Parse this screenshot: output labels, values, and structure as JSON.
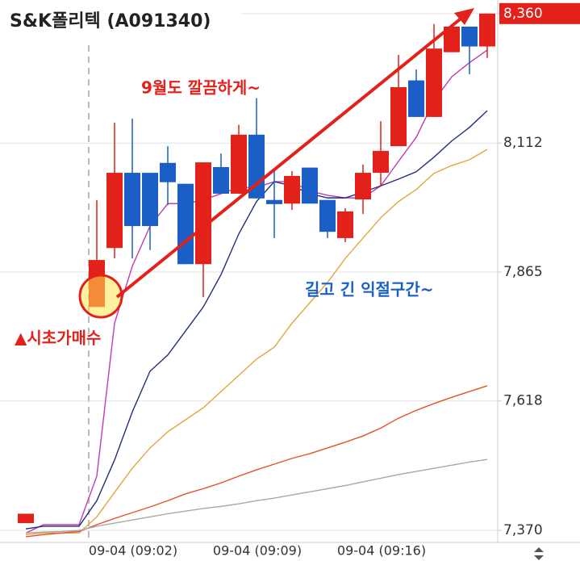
{
  "chart_data": {
    "type": "candlestick",
    "title": "S&K폴리텍 (A091340)",
    "categories": [
      null,
      null,
      null,
      null,
      null,
      null,
      "09-04 (09:02)",
      null,
      null,
      null,
      null,
      null,
      null,
      "09-04 (09:09)",
      null,
      null,
      null,
      null,
      null,
      null,
      "09-04 (09:16)",
      null,
      null,
      null,
      null,
      null,
      null
    ],
    "open": [
      7384,
      null,
      null,
      null,
      7798,
      7911,
      8055,
      8055,
      8074,
      8034,
      7880,
      8066,
      8015,
      8128,
      8003,
      7996,
      8065,
      8003,
      7930,
      8004,
      8055,
      8106,
      8232,
      8162,
      8286,
      8335,
      8297
    ],
    "high": [
      7402,
      null,
      null,
      null,
      8003,
      8151,
      8159,
      8055,
      8106,
      8034,
      8075,
      8092,
      8147,
      8198,
      8061,
      8058,
      8065,
      8003,
      7987,
      8071,
      8154,
      8281,
      8253,
      8340,
      8340,
      8335,
      8360
    ],
    "low": [
      7384,
      null,
      null,
      null,
      7798,
      7891,
      7891,
      7907,
      7993,
      7880,
      7817,
      8015,
      8015,
      8006,
      7930,
      7984,
      7996,
      7930,
      7922,
      7976,
      8030,
      8106,
      8162,
      8162,
      8286,
      8244,
      8275
    ],
    "close": [
      7402,
      null,
      null,
      null,
      7888,
      8055,
      7953,
      7953,
      8037,
      7880,
      8075,
      8015,
      8128,
      8006,
      7995,
      8049,
      7996,
      7942,
      7981,
      8055,
      8097,
      8219,
      8162,
      8293,
      8335,
      8297,
      8360
    ],
    "up_color": "#e3211b",
    "down_color": "#1b5ec6",
    "series": [
      {
        "color": "#c03ab8",
        "values": [
          7365,
          7381,
          7381,
          7381,
          7474,
          7767,
          7876,
          7953,
          7996,
          7996,
          8003,
          8015,
          8027,
          8027,
          8038,
          8038,
          8020,
          8012,
          8007,
          8007,
          8030,
          8077,
          8123,
          8193,
          8239,
          8266,
          8290
        ]
      },
      {
        "color": "#1f2f7a",
        "values": [
          7373,
          7378,
          7378,
          7378,
          7427,
          7505,
          7597,
          7675,
          7706,
          7752,
          7798,
          7860,
          7938,
          8000,
          8038,
          8030,
          8015,
          8007,
          8007,
          8018,
          8030,
          8043,
          8057,
          8085,
          8116,
          8142,
          8174
        ]
      },
      {
        "color": "#e0a83a",
        "values": [
          7362,
          7365,
          7365,
          7365,
          7396,
          7443,
          7489,
          7528,
          7559,
          7582,
          7605,
          7636,
          7667,
          7698,
          7721,
          7767,
          7806,
          7845,
          7891,
          7930,
          7969,
          8000,
          8023,
          8054,
          8069,
          8080,
          8100
        ]
      },
      {
        "color": "#e5502a",
        "values": [
          7358,
          7362,
          7365,
          7368,
          7381,
          7393,
          7404,
          7415,
          7427,
          7440,
          7450,
          7461,
          7474,
          7486,
          7497,
          7508,
          7517,
          7528,
          7539,
          7551,
          7566,
          7585,
          7600,
          7613,
          7625,
          7636,
          7647
        ]
      },
      {
        "color": "#a8a8a8",
        "values": [
          7365,
          7367,
          7368,
          7370,
          7378,
          7384,
          7390,
          7396,
          7402,
          7407,
          7412,
          7416,
          7421,
          7427,
          7432,
          7438,
          7444,
          7450,
          7456,
          7463,
          7470,
          7477,
          7483,
          7489,
          7495,
          7501,
          7506
        ]
      }
    ],
    "ylim": [
      7347,
      8386
    ],
    "yticks": [
      {
        "value": 7370,
        "label": "7,370"
      },
      {
        "value": 7618,
        "label": "7,618"
      },
      {
        "value": 7865,
        "label": "7,865"
      },
      {
        "value": 8112,
        "label": "8,112"
      },
      {
        "value": 8360,
        "label": "8,360"
      }
    ],
    "grid": true,
    "annotations": [
      {
        "text": "9월도 깔끔하게~",
        "color": "#e3211b"
      },
      {
        "text": "▲시초가매수",
        "color": "#e3211b"
      },
      {
        "text": "길고 긴 익절구간~",
        "color": "#1b5ec6"
      }
    ]
  }
}
